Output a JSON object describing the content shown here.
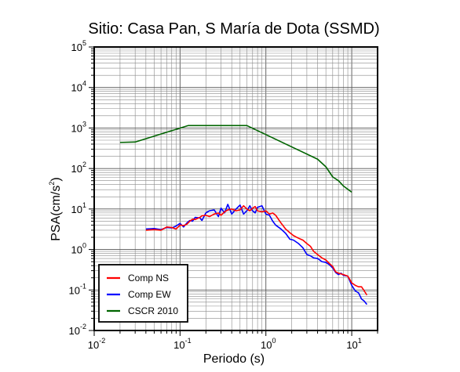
{
  "chart_data": {
    "type": "line",
    "title": "Sitio: Casa Pan, S María de Dota (SSMD)",
    "xlabel": "Periodo (s)",
    "ylabel": "PSA(cm/s2)",
    "ylabel_base": "PSA(cm/s",
    "ylabel_exp": "2",
    "ylabel_close": ")",
    "xscale": "log",
    "yscale": "log",
    "xlim": [
      0.01,
      20
    ],
    "ylim": [
      0.01,
      100000
    ],
    "grid": true,
    "legend_position": "bottom-left",
    "x_ticks": [
      {
        "value": 0.01,
        "base": "10",
        "exp": "-2"
      },
      {
        "value": 0.1,
        "base": "10",
        "exp": "-1"
      },
      {
        "value": 1,
        "base": "10",
        "exp": "0"
      },
      {
        "value": 10,
        "base": "10",
        "exp": "1"
      }
    ],
    "y_ticks": [
      {
        "value": 0.01,
        "base": "10",
        "exp": "-2"
      },
      {
        "value": 0.1,
        "base": "10",
        "exp": "-1"
      },
      {
        "value": 1,
        "base": "10",
        "exp": "0"
      },
      {
        "value": 10,
        "base": "10",
        "exp": "1"
      },
      {
        "value": 100,
        "base": "10",
        "exp": "2"
      },
      {
        "value": 1000,
        "base": "10",
        "exp": "3"
      },
      {
        "value": 10000,
        "base": "10",
        "exp": "4"
      },
      {
        "value": 100000,
        "base": "10",
        "exp": "5"
      }
    ],
    "series": [
      {
        "name": "Comp NS",
        "color": "#ff0000",
        "points": [
          [
            0.04,
            3.0
          ],
          [
            0.05,
            3.1
          ],
          [
            0.06,
            3.0
          ],
          [
            0.07,
            3.6
          ],
          [
            0.08,
            3.5
          ],
          [
            0.09,
            3.2
          ],
          [
            0.1,
            4.0
          ],
          [
            0.11,
            3.9
          ],
          [
            0.12,
            4.2
          ],
          [
            0.13,
            5.0
          ],
          [
            0.14,
            5.6
          ],
          [
            0.15,
            5.5
          ],
          [
            0.17,
            6.2
          ],
          [
            0.18,
            6.8
          ],
          [
            0.2,
            7.0
          ],
          [
            0.22,
            6.5
          ],
          [
            0.25,
            7.5
          ],
          [
            0.28,
            8.0
          ],
          [
            0.3,
            7.0
          ],
          [
            0.33,
            8.5
          ],
          [
            0.36,
            9.5
          ],
          [
            0.4,
            10.0
          ],
          [
            0.45,
            9.0
          ],
          [
            0.5,
            9.5
          ],
          [
            0.55,
            12.0
          ],
          [
            0.6,
            10.0
          ],
          [
            0.65,
            9.0
          ],
          [
            0.7,
            10.5
          ],
          [
            0.75,
            11.5
          ],
          [
            0.8,
            9.0
          ],
          [
            0.9,
            8.5
          ],
          [
            1.0,
            9.0
          ],
          [
            1.1,
            7.5
          ],
          [
            1.2,
            8.0
          ],
          [
            1.3,
            7.0
          ],
          [
            1.5,
            4.5
          ],
          [
            1.7,
            3.2
          ],
          [
            1.9,
            2.6
          ],
          [
            2.1,
            2.2
          ],
          [
            2.4,
            1.9
          ],
          [
            2.7,
            1.7
          ],
          [
            3.0,
            1.4
          ],
          [
            3.3,
            1.2
          ],
          [
            3.6,
            0.9
          ],
          [
            4.0,
            0.75
          ],
          [
            4.5,
            0.62
          ],
          [
            5.0,
            0.55
          ],
          [
            5.5,
            0.45
          ],
          [
            6.0,
            0.38
          ],
          [
            6.5,
            0.28
          ],
          [
            7.0,
            0.26
          ],
          [
            7.5,
            0.25
          ],
          [
            8.0,
            0.24
          ],
          [
            9.0,
            0.22
          ],
          [
            10.0,
            0.15
          ],
          [
            11.0,
            0.13
          ],
          [
            12.0,
            0.12
          ],
          [
            13.0,
            0.12
          ],
          [
            14.0,
            0.095
          ],
          [
            15.0,
            0.075
          ]
        ]
      },
      {
        "name": "Comp EW",
        "color": "#0000ff",
        "points": [
          [
            0.04,
            3.2
          ],
          [
            0.05,
            3.3
          ],
          [
            0.06,
            3.1
          ],
          [
            0.07,
            3.5
          ],
          [
            0.08,
            3.4
          ],
          [
            0.09,
            3.8
          ],
          [
            0.1,
            4.4
          ],
          [
            0.11,
            3.6
          ],
          [
            0.12,
            4.5
          ],
          [
            0.13,
            5.2
          ],
          [
            0.14,
            5.0
          ],
          [
            0.15,
            6.2
          ],
          [
            0.17,
            6.0
          ],
          [
            0.18,
            5.2
          ],
          [
            0.2,
            8.0
          ],
          [
            0.22,
            9.0
          ],
          [
            0.25,
            9.5
          ],
          [
            0.28,
            6.5
          ],
          [
            0.3,
            10.5
          ],
          [
            0.33,
            8.0
          ],
          [
            0.36,
            13.0
          ],
          [
            0.4,
            7.5
          ],
          [
            0.45,
            10.0
          ],
          [
            0.5,
            12.5
          ],
          [
            0.55,
            7.5
          ],
          [
            0.6,
            9.0
          ],
          [
            0.65,
            12.0
          ],
          [
            0.7,
            9.0
          ],
          [
            0.75,
            8.0
          ],
          [
            0.8,
            11.0
          ],
          [
            0.9,
            12.0
          ],
          [
            1.0,
            7.5
          ],
          [
            1.1,
            7.0
          ],
          [
            1.2,
            5.0
          ],
          [
            1.3,
            4.0
          ],
          [
            1.5,
            3.2
          ],
          [
            1.7,
            2.5
          ],
          [
            1.9,
            1.8
          ],
          [
            2.1,
            1.7
          ],
          [
            2.4,
            1.4
          ],
          [
            2.7,
            1.1
          ],
          [
            3.0,
            0.75
          ],
          [
            3.3,
            0.7
          ],
          [
            3.6,
            0.62
          ],
          [
            4.0,
            0.6
          ],
          [
            4.5,
            0.5
          ],
          [
            5.0,
            0.48
          ],
          [
            5.5,
            0.42
          ],
          [
            6.0,
            0.35
          ],
          [
            6.5,
            0.27
          ],
          [
            7.0,
            0.24
          ],
          [
            7.5,
            0.26
          ],
          [
            8.0,
            0.23
          ],
          [
            9.0,
            0.22
          ],
          [
            10.0,
            0.13
          ],
          [
            11.0,
            0.095
          ],
          [
            12.0,
            0.085
          ],
          [
            13.0,
            0.06
          ],
          [
            14.0,
            0.053
          ],
          [
            15.0,
            0.044
          ]
        ]
      },
      {
        "name": "CSCR 2010",
        "color": "#006400",
        "points": [
          [
            0.02,
            440
          ],
          [
            0.03,
            450
          ],
          [
            0.125,
            1150
          ],
          [
            0.6,
            1150
          ],
          [
            4.0,
            170
          ],
          [
            5.0,
            110
          ],
          [
            6.0,
            62
          ],
          [
            7.0,
            50
          ],
          [
            8.0,
            37
          ],
          [
            10.0,
            26
          ]
        ]
      }
    ]
  }
}
